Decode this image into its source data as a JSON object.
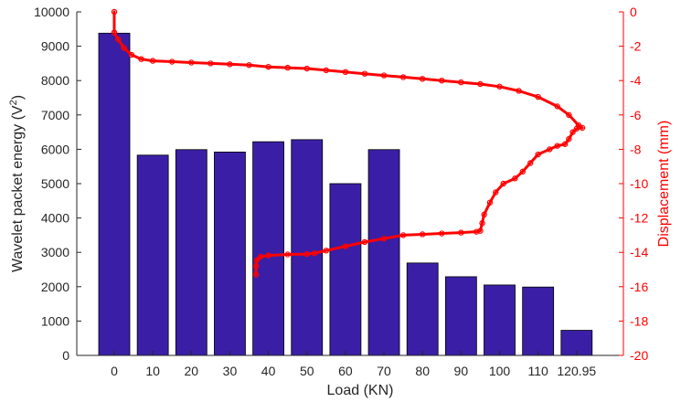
{
  "chart_data": {
    "type": "bar",
    "categories": [
      "0",
      "10",
      "20",
      "30",
      "40",
      "50",
      "60",
      "70",
      "80",
      "90",
      "100",
      "110",
      "120.95"
    ],
    "bar_series": {
      "values": [
        9380,
        5830,
        5990,
        5920,
        6220,
        6280,
        5000,
        5990,
        2690,
        2290,
        2050,
        1990,
        730
      ],
      "color": "#3a1fa6"
    },
    "line_series": {
      "color": "#ff0000",
      "points": [
        [
          0,
          0
        ],
        [
          0,
          -1.2
        ],
        [
          0.1,
          -1.6
        ],
        [
          0.25,
          -2.1
        ],
        [
          0.45,
          -2.5
        ],
        [
          0.7,
          -2.75
        ],
        [
          1.0,
          -2.85
        ],
        [
          1.5,
          -2.9
        ],
        [
          2.0,
          -2.95
        ],
        [
          2.5,
          -3.0
        ],
        [
          3.0,
          -3.05
        ],
        [
          3.5,
          -3.1
        ],
        [
          4.0,
          -3.2
        ],
        [
          4.5,
          -3.25
        ],
        [
          5.0,
          -3.3
        ],
        [
          5.5,
          -3.4
        ],
        [
          6.0,
          -3.5
        ],
        [
          6.5,
          -3.6
        ],
        [
          7.0,
          -3.7
        ],
        [
          7.5,
          -3.8
        ],
        [
          8.0,
          -3.9
        ],
        [
          8.5,
          -4.0
        ],
        [
          9.0,
          -4.1
        ],
        [
          9.5,
          -4.2
        ],
        [
          10.0,
          -4.35
        ],
        [
          10.5,
          -4.6
        ],
        [
          11.0,
          -4.95
        ],
        [
          11.5,
          -5.5
        ],
        [
          11.8,
          -6.0
        ],
        [
          12.05,
          -6.6
        ],
        [
          12.15,
          -6.75
        ],
        [
          12.0,
          -6.8
        ],
        [
          11.9,
          -7.0
        ],
        [
          11.8,
          -7.4
        ],
        [
          11.7,
          -7.7
        ],
        [
          11.5,
          -7.8
        ],
        [
          11.3,
          -8.0
        ],
        [
          11.0,
          -8.3
        ],
        [
          10.8,
          -8.8
        ],
        [
          10.6,
          -9.3
        ],
        [
          10.4,
          -9.7
        ],
        [
          10.1,
          -10.0
        ],
        [
          9.9,
          -10.5
        ],
        [
          9.75,
          -11.1
        ],
        [
          9.6,
          -11.8
        ],
        [
          9.55,
          -12.3
        ],
        [
          9.5,
          -12.75
        ],
        [
          9.4,
          -12.8
        ],
        [
          9.0,
          -12.85
        ],
        [
          8.5,
          -12.9
        ],
        [
          8.0,
          -12.95
        ],
        [
          7.5,
          -13.0
        ],
        [
          7.0,
          -13.2
        ],
        [
          6.5,
          -13.4
        ],
        [
          6.0,
          -13.65
        ],
        [
          5.5,
          -13.9
        ],
        [
          5.2,
          -14.05
        ],
        [
          5.0,
          -14.1
        ],
        [
          4.5,
          -14.12
        ],
        [
          4.0,
          -14.18
        ],
        [
          3.8,
          -14.25
        ],
        [
          3.7,
          -14.45
        ],
        [
          3.68,
          -14.8
        ],
        [
          3.68,
          -15.3
        ]
      ]
    },
    "xlabel": "Load (KN)",
    "ylabel_left": "Wavelet packet energy (V²)",
    "ylabel_left_text": "Wavelet packet energy (V",
    "ylabel_left_sup": "2",
    "ylabel_left_end": ")",
    "ylabel_right": "Displacement (mm)",
    "ylim_left": [
      0,
      10000
    ],
    "ylim_right": [
      -20,
      0
    ],
    "yticks_left": [
      0,
      1000,
      2000,
      3000,
      4000,
      5000,
      6000,
      7000,
      8000,
      9000,
      10000
    ],
    "yticks_right": [
      0,
      -2,
      -4,
      -6,
      -8,
      -10,
      -12,
      -14,
      -16,
      -18,
      -20
    ],
    "grid": false,
    "colors": {
      "bar": "#3a1fa6",
      "line": "#ff0000",
      "left_axis": "#262626",
      "right_axis": "#ff0000"
    }
  }
}
